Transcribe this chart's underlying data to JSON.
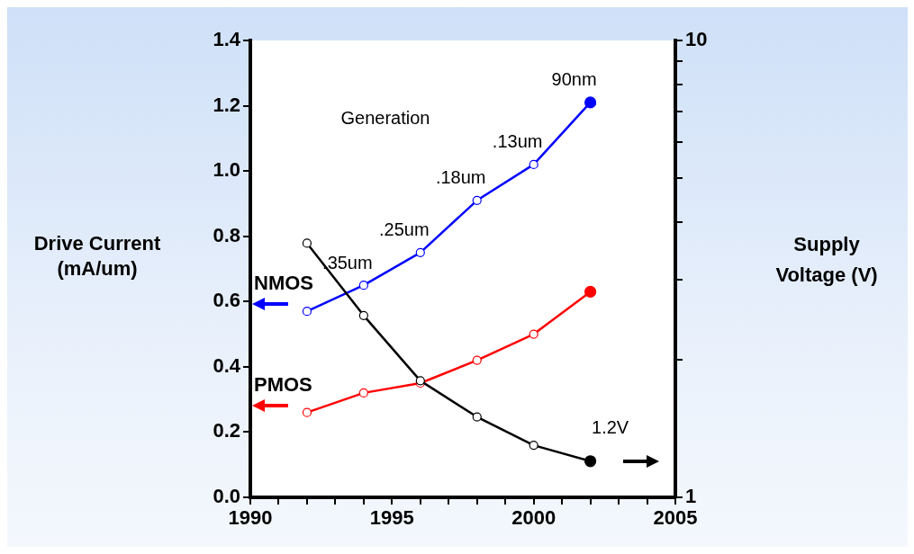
{
  "chart_data": {
    "type": "line",
    "xlabel": null,
    "ylabel": "Drive Current (mA/um)",
    "y2label": "Supply Voltage (V)",
    "x": [
      1992,
      1994,
      1996,
      1998,
      2000,
      2002
    ],
    "series": [
      {
        "name": "NMOS",
        "color": "#0000ff",
        "values": [
          0.57,
          0.65,
          0.75,
          0.91,
          1.02,
          1.21
        ]
      },
      {
        "name": "PMOS",
        "color": "#ff0000",
        "values": [
          0.26,
          0.32,
          0.35,
          0.42,
          0.5,
          0.63
        ]
      },
      {
        "color": "#000000",
        "axis": "y2",
        "values": [
          3.6,
          2.5,
          1.8,
          1.5,
          1.3,
          1.2
        ]
      }
    ],
    "xlim": [
      1990,
      2005
    ],
    "xticks": [
      1990,
      {
        "value": 1991,
        "label": null
      },
      {
        "value": 1992,
        "label": null
      },
      {
        "value": 1993,
        "label": null
      },
      {
        "value": 1994,
        "label": null
      },
      1995,
      {
        "value": 1996,
        "label": null
      },
      {
        "value": 1997,
        "label": null
      },
      {
        "value": 1998,
        "label": null
      },
      {
        "value": 1999,
        "label": null
      },
      2000,
      {
        "value": 2001,
        "label": null
      },
      {
        "value": 2002,
        "label": null
      },
      {
        "value": 2003,
        "label": null
      },
      {
        "value": 2004,
        "label": null
      },
      2005
    ],
    "ylim": [
      0,
      1.4
    ],
    "yticks": [
      {
        "value": 0,
        "label": "0.0"
      },
      0.2,
      0.4,
      0.6,
      0.8,
      {
        "value": 1,
        "label": "1.0"
      },
      1.2,
      1.4
    ],
    "y2lim": [
      1,
      10
    ],
    "y2ticks": [
      1,
      {
        "value": 2,
        "label": null
      },
      {
        "value": 3,
        "label": null
      },
      {
        "value": 4,
        "label": null
      },
      {
        "value": 5,
        "label": null
      },
      {
        "value": 6,
        "label": null
      },
      {
        "value": 7,
        "label": null
      },
      {
        "value": 8,
        "label": null
      },
      {
        "value": 9,
        "label": null
      },
      10
    ],
    "log": "y2",
    "grid": false,
    "legend": false,
    "marker": "circle",
    "annotations": [
      "Generation",
      "1.2V",
      {
        "text": ".35um",
        "x": 1994,
        "y": 0.65
      },
      {
        "text": ".25um",
        "x": 1996,
        "y": 0.75
      },
      {
        "text": ".18um",
        "x": 1998,
        "y": 0.91
      },
      {
        "text": ".13um",
        "x": 2000,
        "y": 1.02
      },
      {
        "text": "90nm",
        "x": 2002,
        "y": 1.21
      }
    ]
  }
}
